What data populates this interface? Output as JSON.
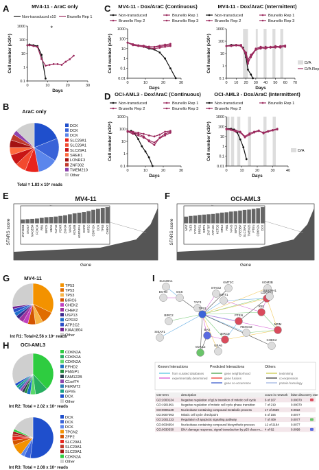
{
  "colors": {
    "black": "#111111",
    "brunello": "#9b2a5e",
    "blue": "#3a63d8",
    "orange": "#f39200",
    "purple": "#8e44ad",
    "green": "#2ecc40",
    "red": "#e8241c",
    "grey": "#cfcfcf",
    "shade": "#dddddd"
  },
  "panel_letters": [
    "A",
    "B",
    "C",
    "D",
    "E",
    "F",
    "G",
    "H",
    "I"
  ],
  "chart_data": [
    {
      "id": "A",
      "type": "line",
      "title": "MV4-11 - AraC only",
      "xlabel": "Days",
      "ylabel": "Cell number (x10⁶)",
      "xticks": [
        "0",
        "10",
        "20",
        "30"
      ],
      "yticks": [
        "1000",
        "100",
        "10",
        "1",
        "0.1"
      ],
      "yscale": "log",
      "xlim": [
        0,
        30
      ],
      "ylim": [
        0.1,
        1000
      ],
      "annotation": "*",
      "series": [
        {
          "name": "Non-transduced x10",
          "color": "#111111",
          "x": [
            0,
            1,
            3,
            5,
            7,
            9
          ],
          "y": [
            40,
            45,
            40,
            35,
            8,
            0.15
          ]
        },
        {
          "name": "Brunello Rep 1",
          "color": "#9b2a5e",
          "x": [
            0,
            1,
            3,
            5,
            7,
            9,
            11,
            13,
            15,
            17,
            19,
            21,
            23
          ],
          "y": [
            40,
            40,
            35,
            30,
            4,
            1.3,
            1.5,
            1.7,
            1.7,
            1.5,
            2.5,
            3.8,
            7
          ]
        }
      ]
    },
    {
      "id": "B",
      "type": "pie",
      "title": "AraC only",
      "total": "Total = 1.83 x 10⁷ reads",
      "labels": [
        "DCK",
        "DCK",
        "DCK",
        "SLC29A1",
        "SLC29A1",
        "SLC29A1",
        "SREK1",
        "LONRF3",
        "ZNF302",
        "TMEM210",
        "Other"
      ],
      "values": [
        19,
        15,
        13,
        9,
        7,
        7,
        5,
        5,
        4,
        3,
        13
      ],
      "colors": [
        "#1f4fcc",
        "#3a63d8",
        "#5b86ec",
        "#e8241c",
        "#f24a2f",
        "#c81515",
        "#ff6a3d",
        "#a41212",
        "#c0392b",
        "#8e44ad",
        "#cfcfcf"
      ]
    },
    {
      "id": "C1",
      "type": "line",
      "title": "MV4-11 - Dox/AraC (Continuous)",
      "xlabel": "Days",
      "ylabel": "Cell number (x10⁶)",
      "xticks": [
        "0",
        "10",
        "20",
        "30"
      ],
      "yticks": [
        "1000",
        "100",
        "10",
        "1",
        "0.1",
        "0.01"
      ],
      "yscale": "log",
      "xlim": [
        0,
        30
      ],
      "ylim": [
        0.01,
        1000
      ],
      "series": [
        {
          "name": "Non-transduced",
          "color": "#111111",
          "x": [
            0,
            3,
            6,
            9,
            12,
            15,
            18,
            21,
            24,
            27
          ],
          "y": [
            40,
            25,
            20,
            15,
            10,
            8,
            4,
            1,
            0.1,
            0.01
          ]
        },
        {
          "name": "Brunello Rep 1",
          "color": "#9b2a5e",
          "x": [
            0,
            3,
            6,
            9,
            12,
            15,
            18,
            21,
            24
          ],
          "y": [
            40,
            25,
            20,
            20,
            15,
            15,
            20,
            25,
            30
          ]
        },
        {
          "name": "Brunello Rep 2",
          "color": "#9b2a5e",
          "x": [
            0,
            3,
            6,
            9,
            12,
            15,
            18,
            21,
            24
          ],
          "y": [
            40,
            28,
            22,
            18,
            16,
            14,
            16,
            20,
            22
          ]
        },
        {
          "name": "Brunello Rep 3",
          "color": "#9b2a5e",
          "x": [
            0,
            3,
            6,
            9,
            12,
            15,
            18,
            21,
            24
          ],
          "y": [
            40,
            22,
            18,
            15,
            12,
            10,
            12,
            15,
            18
          ]
        }
      ]
    },
    {
      "id": "C2",
      "type": "line",
      "title": "MV4-11 - Dox/AraC (Intermittent)",
      "xlabel": "Days",
      "ylabel": "Cell number (x10⁶)",
      "xticks": [
        "0",
        "10",
        "20",
        "30",
        "40",
        "50",
        "60",
        "70"
      ],
      "yticks": [
        "1000",
        "100",
        "10",
        "1",
        "0.1"
      ],
      "yscale": "log",
      "xlim": [
        0,
        70
      ],
      "ylim": [
        0.1,
        1000
      ],
      "shaded": [
        [
          17,
          22
        ],
        [
          30,
          32
        ],
        [
          38,
          41
        ],
        [
          47,
          50
        ],
        [
          55,
          58
        ]
      ],
      "legend_extra": [
        "D/A",
        "D/A Rep 3"
      ],
      "series": [
        {
          "name": "Non-transduced",
          "color": "#111111",
          "x": [
            0,
            5,
            10,
            15,
            17,
            20,
            22,
            25,
            27
          ],
          "y": [
            40,
            50,
            50,
            40,
            30,
            5,
            0.5,
            0.2,
            0.1
          ]
        },
        {
          "name": "Brunello Rep 1",
          "color": "#9b2a5e",
          "x": [
            0,
            5,
            10,
            15,
            20,
            22,
            25,
            30,
            35,
            40,
            45,
            50,
            55,
            60
          ],
          "y": [
            40,
            45,
            50,
            50,
            10,
            2,
            5,
            20,
            30,
            25,
            35,
            35,
            30,
            40
          ]
        },
        {
          "name": "Brunello Rep 2",
          "color": "#9b2a5e",
          "x": [
            0,
            5,
            10,
            15,
            20,
            22,
            25,
            30,
            35,
            40,
            45,
            50,
            55,
            60
          ],
          "y": [
            40,
            40,
            45,
            40,
            8,
            1.5,
            6,
            25,
            35,
            30,
            30,
            40,
            35,
            35
          ]
        },
        {
          "name": "Brunello Rep 3",
          "color": "#9b2a5e",
          "x": [
            0,
            5,
            10,
            15,
            20,
            22,
            25,
            30,
            35,
            40,
            45,
            50,
            55,
            60
          ],
          "y": [
            40,
            45,
            45,
            45,
            12,
            3,
            8,
            20,
            25,
            35,
            30,
            30,
            40,
            45
          ]
        }
      ]
    },
    {
      "id": "D1",
      "type": "line",
      "title": "OCI-AML3 - Dox/AraC (Continuous)",
      "xlabel": "Days",
      "ylabel": "Cell number (x10⁶)",
      "xticks": [
        "0",
        "10",
        "20",
        "30"
      ],
      "yticks": [
        "1000",
        "100",
        "10",
        "1",
        "0.1"
      ],
      "yscale": "log",
      "xlim": [
        0,
        30
      ],
      "ylim": [
        0.1,
        1000
      ],
      "series": [
        {
          "name": "Non-transduced",
          "color": "#111111",
          "x": [
            0,
            2,
            4,
            6,
            8,
            10,
            12,
            14
          ],
          "y": [
            60,
            70,
            40,
            15,
            4,
            1.5,
            0.5,
            0.1
          ]
        },
        {
          "name": "Brunello Rep 1",
          "color": "#9b2a5e",
          "x": [
            0,
            3,
            6,
            9,
            12,
            15,
            18,
            21,
            24
          ],
          "y": [
            70,
            50,
            40,
            25,
            10,
            5,
            20,
            40,
            60
          ]
        },
        {
          "name": "Brunello Rep 2",
          "color": "#9b2a5e",
          "x": [
            0,
            3,
            6,
            9,
            12,
            15,
            18,
            21,
            24
          ],
          "y": [
            60,
            40,
            30,
            20,
            12,
            8,
            18,
            30,
            50
          ]
        },
        {
          "name": "Brunello Rep 3",
          "color": "#9b2a5e",
          "x": [
            0,
            3,
            6,
            9,
            12,
            15,
            18,
            21,
            24
          ],
          "y": [
            70,
            60,
            50,
            40,
            30,
            25,
            35,
            60,
            70
          ]
        }
      ]
    },
    {
      "id": "D2",
      "type": "line",
      "title": "OCI-AML3 - Dox/AraC (Intermittent)",
      "xlabel": "Days",
      "ylabel": "Cell number (x10⁶)",
      "xticks": [
        "0",
        "10",
        "20",
        "30",
        "40"
      ],
      "yticks": [
        "1000",
        "100",
        "10",
        "1",
        "0.1",
        "0.01"
      ],
      "yscale": "log",
      "xlim": [
        0,
        40
      ],
      "ylim": [
        0.01,
        1000
      ],
      "shaded": [
        [
          0,
          2
        ],
        [
          3,
          5
        ],
        [
          7,
          9
        ],
        [
          14,
          16
        ],
        [
          24,
          26
        ],
        [
          30,
          32
        ]
      ],
      "legend_extra": [
        "D/A"
      ],
      "series": [
        {
          "name": "Non-transduced",
          "color": "#111111",
          "x": [
            0,
            3,
            5,
            7,
            9,
            11,
            13
          ],
          "y": [
            60,
            60,
            50,
            25,
            5,
            0.8,
            0.05
          ]
        },
        {
          "name": "Brunello Rep 1",
          "color": "#9b2a5e",
          "x": [
            0,
            3,
            6,
            9,
            12,
            15,
            18,
            21,
            24,
            27,
            30,
            33
          ],
          "y": [
            60,
            50,
            40,
            30,
            10,
            20,
            30,
            40,
            20,
            30,
            40,
            50
          ]
        },
        {
          "name": "Brunello Rep 2",
          "color": "#9b2a5e",
          "x": [
            0,
            3,
            6,
            9,
            12,
            15,
            18,
            21,
            24,
            27,
            30,
            33
          ],
          "y": [
            50,
            45,
            30,
            25,
            8,
            15,
            25,
            35,
            25,
            35,
            45,
            60
          ]
        }
      ]
    },
    {
      "id": "E",
      "type": "bar",
      "title": "MV4-11",
      "xlabel": "Gene",
      "ylabel": "STARS score",
      "inset_labels": [
        "ZNF384B",
        "SNX17",
        "MAGEB4",
        "FOXO4",
        "RB1",
        "BIRC6",
        "UBA6",
        "KLF15",
        "FDXR",
        "ZNF34",
        "MAP4",
        "KDM3B",
        "HNRNPA1",
        "EGR2",
        "KIF2C",
        "CDKN2A",
        "DCK",
        "TP53",
        "CHEK2"
      ],
      "inset_values": [
        1.2,
        1.3,
        1.4,
        1.5,
        1.7,
        1.9,
        2.0,
        2.1,
        2.3,
        2.5,
        2.8,
        3.1,
        3.3,
        3.5,
        3.8,
        4.2,
        4.5,
        4.8,
        5.0
      ]
    },
    {
      "id": "F",
      "type": "bar",
      "title": "OCI-AML3",
      "xlabel": "Gene",
      "ylabel": "STARS score",
      "inset_labels": [
        "MAZ",
        "TAF3",
        "STAG2",
        "PRPS1",
        "SIRT1",
        "ZNF787",
        "ATP13A",
        "KCTD5",
        "MRL5",
        "RB1",
        "NANS",
        "BIRC2",
        "CREBBP",
        "SLC29A1",
        "TMEM26",
        "PTEN",
        "CDKN2A",
        "DCK"
      ],
      "inset_values": [
        2.0,
        2.2,
        2.3,
        2.5,
        2.6,
        2.7,
        2.8,
        3.0,
        3.2,
        3.3,
        3.5,
        3.6,
        3.8,
        4.0,
        4.1,
        4.3,
        4.5,
        4.8
      ]
    },
    {
      "id": "G",
      "type": "pie",
      "title": "MV4-11",
      "total": "Int R1: Total=2.56 x 10⁷ reads",
      "labels": [
        "TP53",
        "TP53",
        "TP53",
        "BIRC6",
        "CHEK2",
        "CHEK2",
        "USP13",
        "GPR32",
        "ATP2C2",
        "KIAA1804",
        "Other"
      ],
      "values": [
        32,
        10,
        6,
        6,
        4,
        4,
        3,
        3,
        3,
        2,
        27
      ],
      "colors": [
        "#f39200",
        "#e06c00",
        "#f7b548",
        "#d35400",
        "#c040c0",
        "#a033a0",
        "#3a2a8e",
        "#1f6fcc",
        "#2a4ec8",
        "#702090",
        "#cfcfcf"
      ]
    },
    {
      "id": "H1",
      "type": "pie",
      "title": "OCI-AML3",
      "total": "Int R2: Total = 2.02 x 10⁷ reads",
      "labels": [
        "CDKN2A",
        "CDKN2A",
        "CDKN2A",
        "EFHD2",
        "PMAIP1",
        "FAM122B",
        "C1orf74",
        "FERMT2",
        "GPX5",
        "DCK",
        "Other"
      ],
      "values": [
        38,
        10,
        4,
        3,
        2,
        2,
        2,
        2,
        2,
        2,
        33
      ],
      "colors": [
        "#2ecc40",
        "#27ae60",
        "#58d868",
        "#1a6fc0",
        "#1f8a3a",
        "#2c3e50",
        "#8e44ad",
        "#2c7bb6",
        "#16a085",
        "#1f4fcc",
        "#cfcfcf"
      ]
    },
    {
      "id": "H2",
      "type": "pie",
      "total": "Int R3: Total = 2.08 x 10⁷ reads",
      "labels": [
        "DCK",
        "DCK",
        "DCK",
        "TPCN2",
        "ZFP2",
        "SLC29A1",
        "SLC29A1",
        "SLC29A1",
        "CDKN2A",
        "Other"
      ],
      "values": [
        52,
        5,
        3,
        9,
        4,
        3,
        2,
        2,
        2,
        18
      ],
      "colors": [
        "#1f4fcc",
        "#3a63d8",
        "#5b86ec",
        "#f39200",
        "#d35400",
        "#e8241c",
        "#c0392b",
        "#a41212",
        "#2ecc40",
        "#cfcfcf"
      ]
    }
  ],
  "network": {
    "nodes": [
      "SLC29A1",
      "DCTD",
      "DCK",
      "TAF3",
      "BIRC2",
      "SIEAF1",
      "STAG2",
      "KMT2C",
      "TP53",
      "CDKN2A",
      "RB1",
      "PTEN",
      "BAX",
      "VDAC2",
      "UBA6",
      "BIRC6",
      "FBXO42",
      "MDM",
      "CHEK2",
      "KDM3B",
      "SUV39H1",
      "SIRT1"
    ],
    "known_heading": "Known Interactions",
    "predicted_heading": "Predicted Interactions",
    "others_heading": "Others",
    "known": [
      "from curated databases",
      "experimentally determined"
    ],
    "predicted": [
      "gene neighborhood",
      "gene fusions",
      "gene co-occurrence"
    ],
    "others": [
      "textmining",
      "co-expression",
      "protein homology"
    ]
  },
  "go_table": {
    "headers": [
      "GO-term",
      "description",
      "count in network",
      "false discovery rate"
    ],
    "rows": [
      [
        "GO:2000134",
        "Negative regulation of g1/s transition of mitotic cell cycle",
        "6 of 107",
        "0.00070"
      ],
      [
        "GO:1901991",
        "Negative regulation of mitotic cell cycle phase transition",
        "7 of 219",
        "0.00070"
      ],
      [
        "GO:0006139",
        "Nucleobase-containing compound metabolic process",
        "17 of 2659",
        "0.0022"
      ],
      [
        "GO:0007093",
        "Mitotic cell cycle checkpoint",
        "5 of 156",
        "0.0077"
      ],
      [
        "GO:2001233",
        "Regulation of apoptotic signaling pathway",
        "7 of 409",
        "0.0077"
      ],
      [
        "GO:0034654",
        "Nucleobase-containing compound biosynthetic process",
        "12 of 2184",
        "0.0077"
      ],
      [
        "GO:0030330",
        "DNA damage response, signal transduction by p53 class m...",
        "4 of 82",
        "0.0099"
      ]
    ],
    "row_colors": [
      "#d94b5c",
      "",
      "",
      "",
      "#6ac46a",
      "",
      "#5a6be0"
    ]
  }
}
